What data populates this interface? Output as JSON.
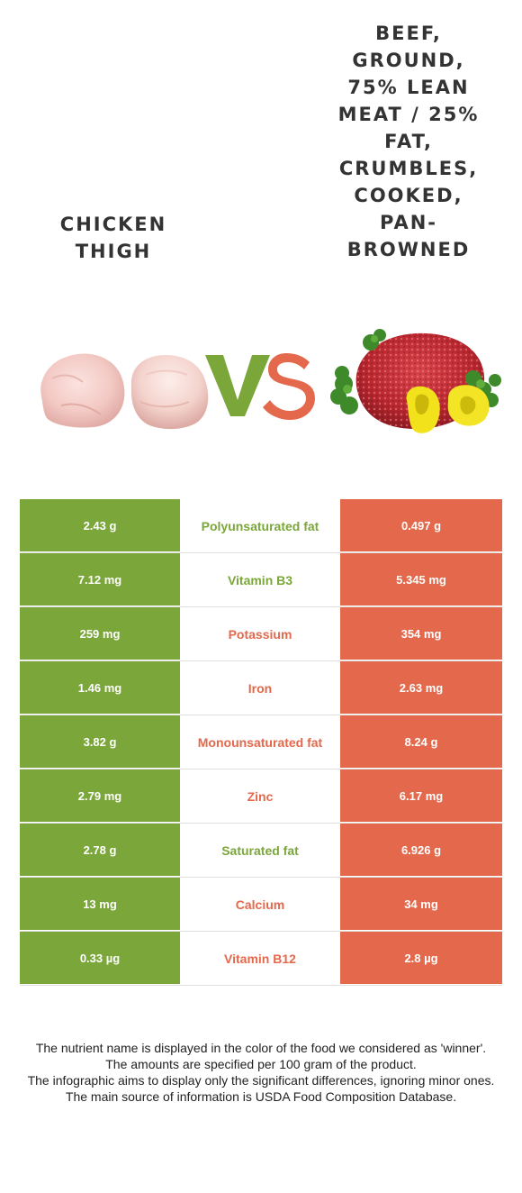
{
  "header": {
    "left_title": "Chicken thigh",
    "right_title": "Beef, ground, 75% lean meat / 25% fat, crumbles, cooked, pan-browned",
    "vs_left_letter": "V",
    "vs_right_letter": "S"
  },
  "colors": {
    "left_food": "#7ba63a",
    "right_food": "#e4684b"
  },
  "images": {
    "left": "chicken-thigh-photo",
    "right": "ground-beef-with-peppers-photo"
  },
  "table": {
    "rows": [
      {
        "left": "2.43 g",
        "nutrient": "Polyunsaturated fat",
        "right": "0.497 g",
        "winner": "left"
      },
      {
        "left": "7.12 mg",
        "nutrient": "Vitamin B3",
        "right": "5.345 mg",
        "winner": "left"
      },
      {
        "left": "259 mg",
        "nutrient": "Potassium",
        "right": "354 mg",
        "winner": "right"
      },
      {
        "left": "1.46 mg",
        "nutrient": "Iron",
        "right": "2.63 mg",
        "winner": "right"
      },
      {
        "left": "3.82 g",
        "nutrient": "Monounsaturated fat",
        "right": "8.24 g",
        "winner": "right"
      },
      {
        "left": "2.79 mg",
        "nutrient": "Zinc",
        "right": "6.17 mg",
        "winner": "right"
      },
      {
        "left": "2.78 g",
        "nutrient": "Saturated fat",
        "right": "6.926 g",
        "winner": "left"
      },
      {
        "left": "13 mg",
        "nutrient": "Calcium",
        "right": "34 mg",
        "winner": "right"
      },
      {
        "left": "0.33 µg",
        "nutrient": "Vitamin B12",
        "right": "2.8 µg",
        "winner": "right"
      }
    ]
  },
  "footer": {
    "line1": "The nutrient name is displayed in the color of the food we considered as 'winner'.",
    "line2": "The amounts are specified per 100 gram of the product.",
    "line3": "The infographic aims to display only the significant differences, ignoring minor ones.",
    "line4": "The main source of information is USDA Food Composition Database."
  }
}
